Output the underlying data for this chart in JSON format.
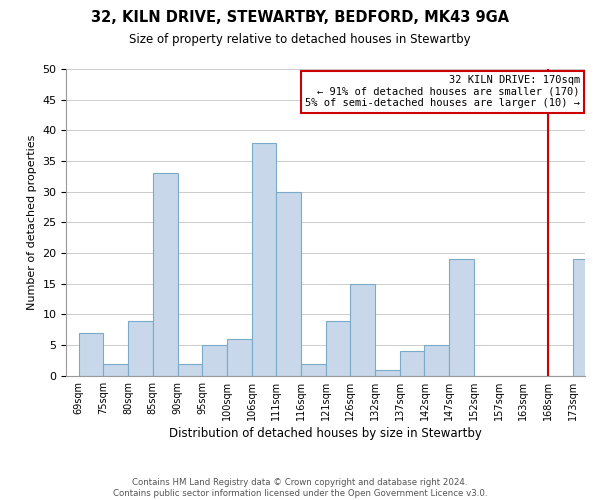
{
  "title": "32, KILN DRIVE, STEWARTBY, BEDFORD, MK43 9GA",
  "subtitle": "Size of property relative to detached houses in Stewartby",
  "xlabel": "Distribution of detached houses by size in Stewartby",
  "ylabel": "Number of detached properties",
  "bar_color": "#c8d8ea",
  "bar_edge_color": "#7aaac8",
  "bin_labels": [
    "69sqm",
    "75sqm",
    "80sqm",
    "85sqm",
    "90sqm",
    "95sqm",
    "100sqm",
    "106sqm",
    "111sqm",
    "116sqm",
    "121sqm",
    "126sqm",
    "132sqm",
    "137sqm",
    "142sqm",
    "147sqm",
    "152sqm",
    "157sqm",
    "163sqm",
    "168sqm",
    "173sqm"
  ],
  "bar_heights": [
    7,
    2,
    9,
    33,
    2,
    5,
    6,
    38,
    30,
    2,
    9,
    15,
    1,
    4,
    5,
    19,
    0,
    0,
    0,
    0,
    19
  ],
  "ylim": [
    0,
    50
  ],
  "yticks": [
    0,
    5,
    10,
    15,
    20,
    25,
    30,
    35,
    40,
    45,
    50
  ],
  "annotation_title": "32 KILN DRIVE: 170sqm",
  "annotation_line1": "← 91% of detached houses are smaller (170)",
  "annotation_line2": "5% of semi-detached houses are larger (10) →",
  "footer_line1": "Contains HM Land Registry data © Crown copyright and database right 2024.",
  "footer_line2": "Contains public sector information licensed under the Open Government Licence v3.0.",
  "grid_color": "#cccccc",
  "marker_line_color": "#cc0000",
  "background_color": "#ffffff",
  "marker_bin_index": 19
}
